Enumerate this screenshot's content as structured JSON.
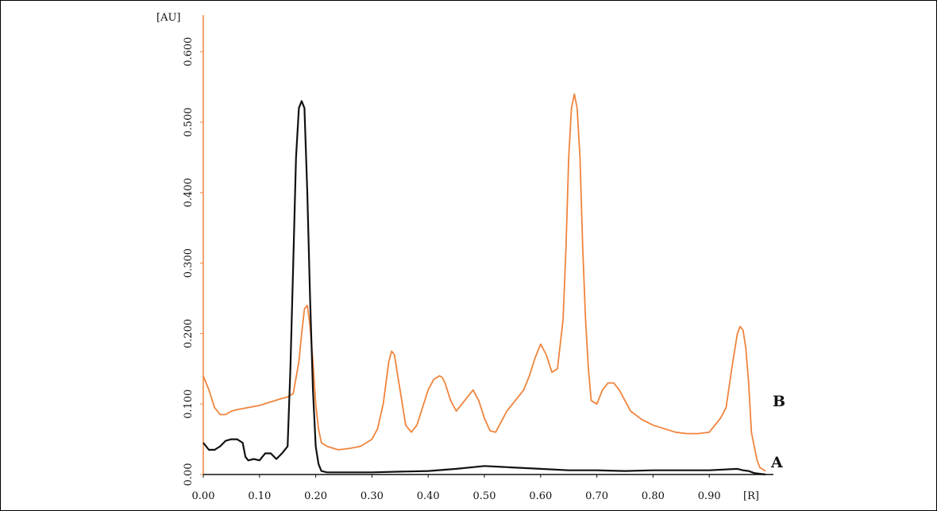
{
  "chart_data": {
    "type": "line",
    "title": "",
    "xlabel": "[R]",
    "ylabel": "[AU]",
    "xlim": [
      0,
      1.0
    ],
    "ylim": [
      0,
      0.65
    ],
    "x_ticks": [
      "0.00",
      "0.10",
      "0.20",
      "0.30",
      "0.40",
      "0.50",
      "0.60",
      "0.70",
      "0.80",
      "0.90"
    ],
    "y_ticks": [
      "0.00",
      "0.100",
      "0.200",
      "0.300",
      "0.400",
      "0.500",
      "0.600"
    ],
    "grid": false,
    "legend": "inline-right",
    "series": [
      {
        "name": "A",
        "color": "#111111",
        "x": [
          0.0,
          0.01,
          0.02,
          0.03,
          0.04,
          0.05,
          0.06,
          0.07,
          0.075,
          0.08,
          0.09,
          0.1,
          0.11,
          0.12,
          0.13,
          0.14,
          0.15,
          0.155,
          0.16,
          0.165,
          0.17,
          0.175,
          0.18,
          0.185,
          0.19,
          0.195,
          0.2,
          0.205,
          0.21,
          0.22,
          0.25,
          0.3,
          0.35,
          0.4,
          0.45,
          0.5,
          0.55,
          0.6,
          0.65,
          0.7,
          0.75,
          0.8,
          0.85,
          0.9,
          0.95,
          0.96,
          0.97,
          0.98,
          0.99,
          1.0
        ],
        "values": [
          0.045,
          0.035,
          0.035,
          0.04,
          0.048,
          0.05,
          0.05,
          0.045,
          0.025,
          0.02,
          0.022,
          0.02,
          0.03,
          0.03,
          0.022,
          0.03,
          0.04,
          0.15,
          0.3,
          0.45,
          0.52,
          0.53,
          0.52,
          0.4,
          0.25,
          0.12,
          0.04,
          0.015,
          0.005,
          0.003,
          0.003,
          0.003,
          0.004,
          0.005,
          0.008,
          0.012,
          0.01,
          0.008,
          0.006,
          0.006,
          0.005,
          0.006,
          0.006,
          0.006,
          0.008,
          0.006,
          0.005,
          0.002,
          0.001,
          0.0
        ]
      },
      {
        "name": "B",
        "color": "#f0843c",
        "x": [
          0.0,
          0.01,
          0.02,
          0.03,
          0.04,
          0.05,
          0.06,
          0.08,
          0.1,
          0.12,
          0.14,
          0.15,
          0.16,
          0.17,
          0.175,
          0.18,
          0.185,
          0.19,
          0.195,
          0.2,
          0.205,
          0.21,
          0.22,
          0.24,
          0.26,
          0.28,
          0.3,
          0.31,
          0.32,
          0.33,
          0.335,
          0.34,
          0.35,
          0.36,
          0.37,
          0.38,
          0.39,
          0.4,
          0.41,
          0.42,
          0.425,
          0.43,
          0.44,
          0.45,
          0.46,
          0.47,
          0.48,
          0.49,
          0.5,
          0.51,
          0.52,
          0.53,
          0.54,
          0.55,
          0.56,
          0.57,
          0.58,
          0.59,
          0.6,
          0.61,
          0.62,
          0.63,
          0.64,
          0.645,
          0.65,
          0.655,
          0.66,
          0.665,
          0.67,
          0.675,
          0.68,
          0.685,
          0.69,
          0.7,
          0.71,
          0.72,
          0.73,
          0.74,
          0.75,
          0.76,
          0.78,
          0.8,
          0.82,
          0.84,
          0.86,
          0.88,
          0.9,
          0.92,
          0.93,
          0.94,
          0.95,
          0.955,
          0.96,
          0.965,
          0.97,
          0.975,
          0.98,
          0.985,
          0.99,
          1.0
        ],
        "values": [
          0.14,
          0.12,
          0.095,
          0.085,
          0.085,
          0.09,
          0.092,
          0.095,
          0.098,
          0.103,
          0.108,
          0.11,
          0.115,
          0.16,
          0.2,
          0.235,
          0.24,
          0.21,
          0.16,
          0.1,
          0.065,
          0.045,
          0.04,
          0.035,
          0.037,
          0.04,
          0.05,
          0.065,
          0.1,
          0.16,
          0.175,
          0.17,
          0.12,
          0.07,
          0.06,
          0.07,
          0.095,
          0.12,
          0.135,
          0.14,
          0.138,
          0.13,
          0.105,
          0.09,
          0.1,
          0.11,
          0.12,
          0.105,
          0.08,
          0.062,
          0.06,
          0.075,
          0.09,
          0.1,
          0.11,
          0.12,
          0.14,
          0.165,
          0.185,
          0.17,
          0.145,
          0.15,
          0.22,
          0.32,
          0.45,
          0.52,
          0.54,
          0.52,
          0.45,
          0.32,
          0.22,
          0.15,
          0.105,
          0.1,
          0.12,
          0.13,
          0.13,
          0.12,
          0.105,
          0.09,
          0.078,
          0.07,
          0.065,
          0.06,
          0.058,
          0.058,
          0.06,
          0.08,
          0.095,
          0.15,
          0.2,
          0.21,
          0.205,
          0.18,
          0.13,
          0.06,
          0.04,
          0.02,
          0.01,
          0.005
        ]
      }
    ]
  }
}
